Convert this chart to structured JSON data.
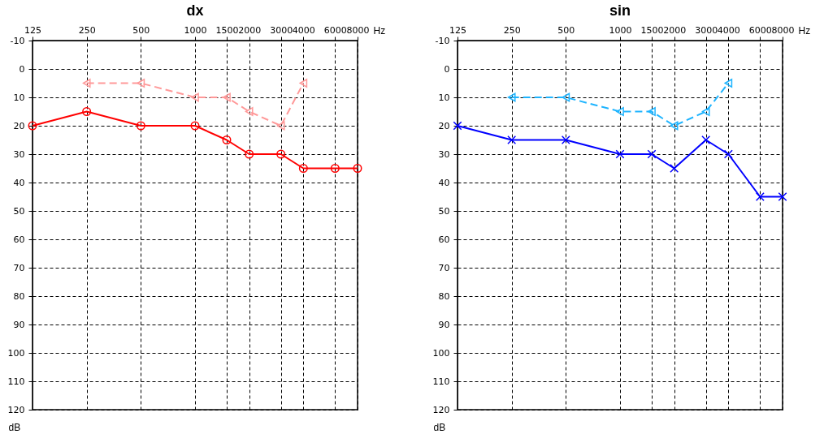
{
  "chart_data": [
    {
      "type": "line",
      "title": "dx",
      "xlabel": "Hz",
      "ylabel": "dB",
      "log": "x",
      "xlim": [
        125,
        8000
      ],
      "xticks": [
        125,
        250,
        500,
        1000,
        1500,
        2000,
        3000,
        4000,
        6000,
        8000
      ],
      "ylim": [
        120,
        -10
      ],
      "yticks": [
        -10,
        0,
        10,
        20,
        30,
        40,
        50,
        60,
        70,
        80,
        90,
        100,
        110,
        120
      ],
      "grid": true,
      "legend": false,
      "series": [
        {
          "color": "#ff0000",
          "marker": "circle",
          "line_style": "solid",
          "x": [
            125,
            250,
            500,
            1000,
            1500,
            2000,
            3000,
            4000,
            6000,
            8000
          ],
          "values": [
            20,
            15,
            20,
            20,
            25,
            30,
            30,
            35,
            35,
            35
          ]
        },
        {
          "color": "#ff9999",
          "marker": "triangle",
          "line_style": "dashed",
          "x": [
            250,
            500,
            1000,
            1500,
            2000,
            3000,
            4000
          ],
          "values": [
            5,
            5,
            10,
            10,
            15,
            20,
            5
          ]
        }
      ]
    },
    {
      "type": "line",
      "title": "sin",
      "xlabel": "Hz",
      "ylabel": "dB",
      "log": "x",
      "xlim": [
        125,
        8000
      ],
      "xticks": [
        125,
        250,
        500,
        1000,
        1500,
        2000,
        3000,
        4000,
        6000,
        8000
      ],
      "ylim": [
        120,
        -10
      ],
      "yticks": [
        -10,
        0,
        10,
        20,
        30,
        40,
        50,
        60,
        70,
        80,
        90,
        100,
        110,
        120
      ],
      "grid": true,
      "legend": false,
      "series": [
        {
          "color": "#0000ff",
          "marker": "cross",
          "line_style": "solid",
          "x": [
            125,
            250,
            500,
            1000,
            1500,
            2000,
            3000,
            4000,
            6000,
            8000
          ],
          "values": [
            20,
            25,
            25,
            30,
            30,
            35,
            25,
            30,
            45,
            45
          ]
        },
        {
          "color": "#1eb4ff",
          "marker": "triangle",
          "line_style": "dashed",
          "x": [
            250,
            500,
            1000,
            1500,
            2000,
            3000,
            4000
          ],
          "values": [
            10,
            10,
            15,
            15,
            20,
            15,
            5
          ]
        }
      ]
    }
  ]
}
